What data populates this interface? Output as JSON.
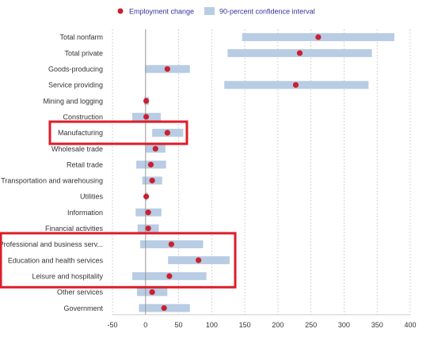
{
  "chart_data": {
    "type": "scatter",
    "legend": {
      "placement": "top",
      "point_label": "Employment change",
      "interval_label": "90-percent confidence interval"
    },
    "colors": {
      "point": "#cc1f2f",
      "interval": "#b8cce4",
      "highlight": "#dd1c28",
      "legend_text": "#333399",
      "gridline": "#c8c8c8",
      "zero_line": "#999999"
    },
    "xlim": [
      -50,
      400
    ],
    "xticks": [
      "-50",
      "0",
      "50",
      "100",
      "150",
      "200",
      "250",
      "300",
      "350",
      "400"
    ],
    "grid": "vertical dashed",
    "categories": [
      "Total nonfarm",
      "Total private",
      "Goods-producing",
      "Service providing",
      "Mining and logging",
      "Construction",
      "Manufacturing",
      "Wholesale trade",
      "Retail trade",
      "Transportation and warehousing",
      "Utilities",
      "Information",
      "Financial activities",
      "Professional and business serv...",
      "Education and health services",
      "Leisure and hospitality",
      "Other services",
      "Government"
    ],
    "employment_change": [
      261,
      233,
      33,
      227,
      1,
      1,
      33,
      15,
      8,
      10,
      1,
      4,
      4,
      39,
      80,
      36,
      10,
      28
    ],
    "interval_low": [
      146,
      124,
      -1,
      119,
      -2,
      -20,
      10,
      0,
      -14,
      -5,
      -1,
      -15,
      -12,
      -8,
      34,
      -20,
      -13,
      -10
    ],
    "interval_high": [
      376,
      342,
      67,
      337,
      5,
      23,
      57,
      30,
      31,
      25,
      3,
      24,
      20,
      87,
      127,
      92,
      33,
      67
    ],
    "highlighted": [
      "Manufacturing",
      "Professional and business serv...",
      "Education and health services",
      "Leisure and hospitality"
    ]
  }
}
